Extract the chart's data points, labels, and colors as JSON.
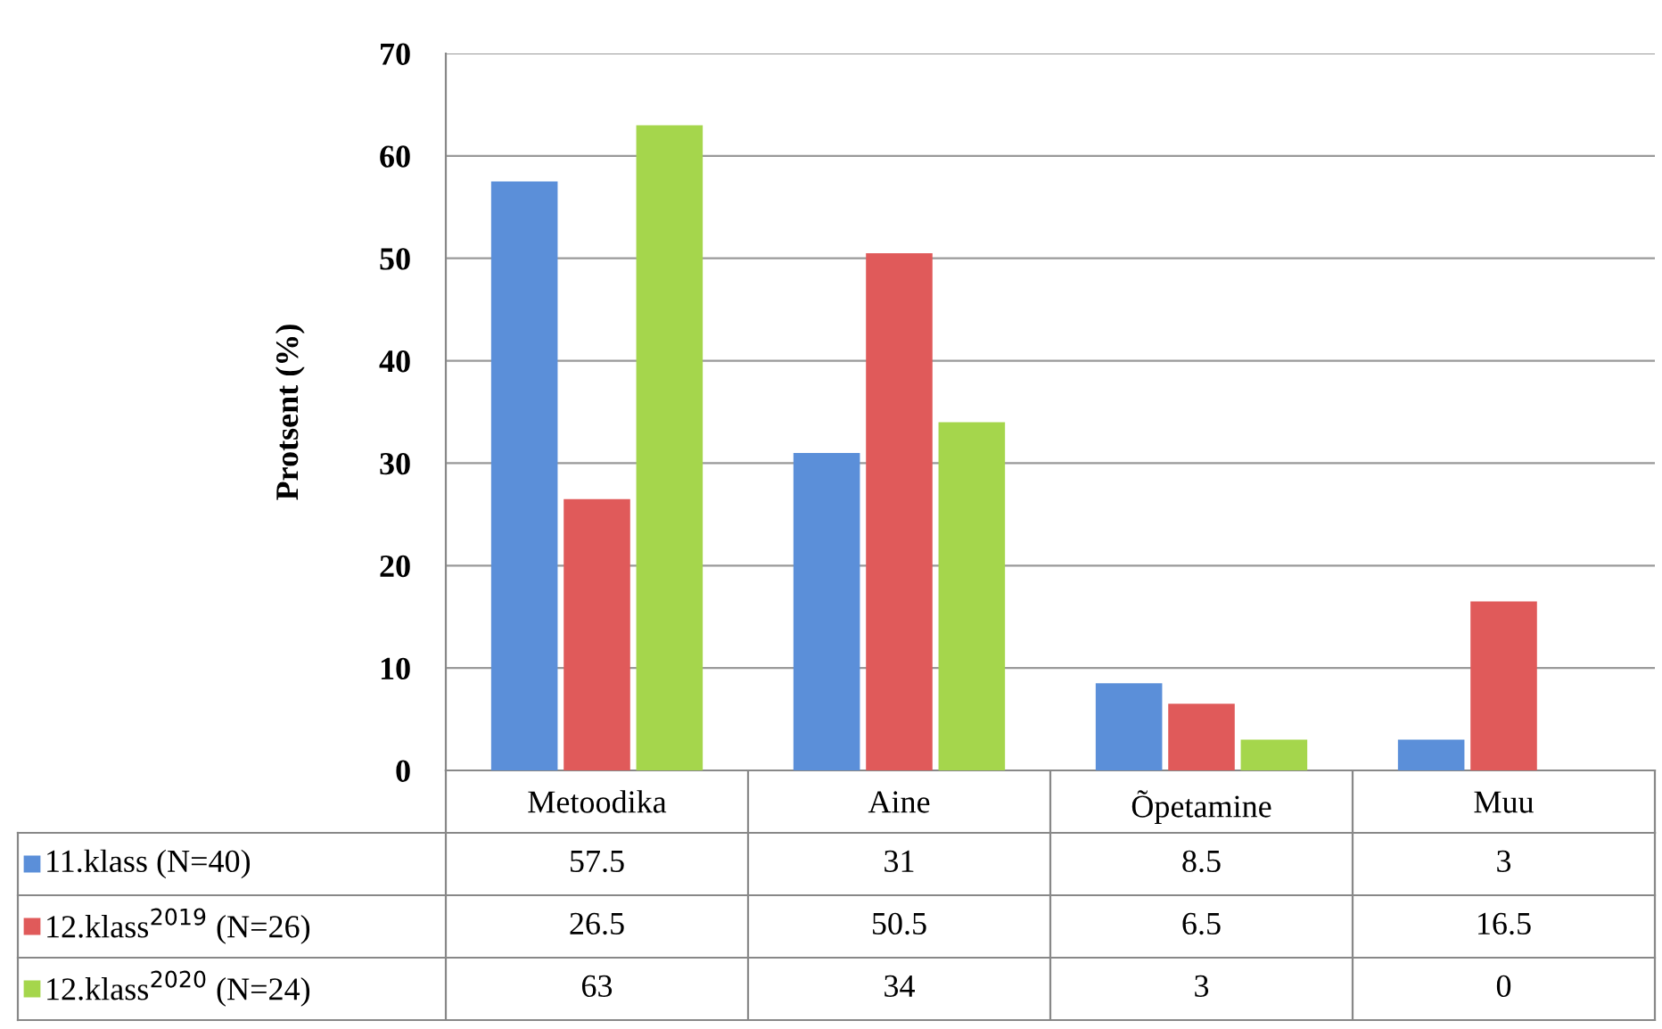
{
  "chart_data": {
    "type": "bar",
    "ylabel": "Protsent (%)",
    "categories": [
      "Metoodika",
      "Aine",
      "Õpetamine",
      "Muu"
    ],
    "series": [
      {
        "name": "11.klass (N=40)",
        "color": "#5b8fd9",
        "values": [
          57.5,
          31,
          8.5,
          3
        ]
      },
      {
        "name": "12.klass$^{2019}$ (N=26)",
        "color": "#e05a5a",
        "values": [
          26.5,
          50.5,
          6.5,
          16.5
        ]
      },
      {
        "name": "12.klass$^{2020}$ (N=24)",
        "color": "#a5d64c",
        "values": [
          63,
          34,
          3,
          0
        ]
      }
    ],
    "ylim": [
      0,
      70
    ],
    "yticks": [
      0,
      10,
      20,
      30,
      40,
      50,
      60,
      70
    ],
    "grid": "y",
    "legend": "bottom",
    "data_labels": true
  }
}
